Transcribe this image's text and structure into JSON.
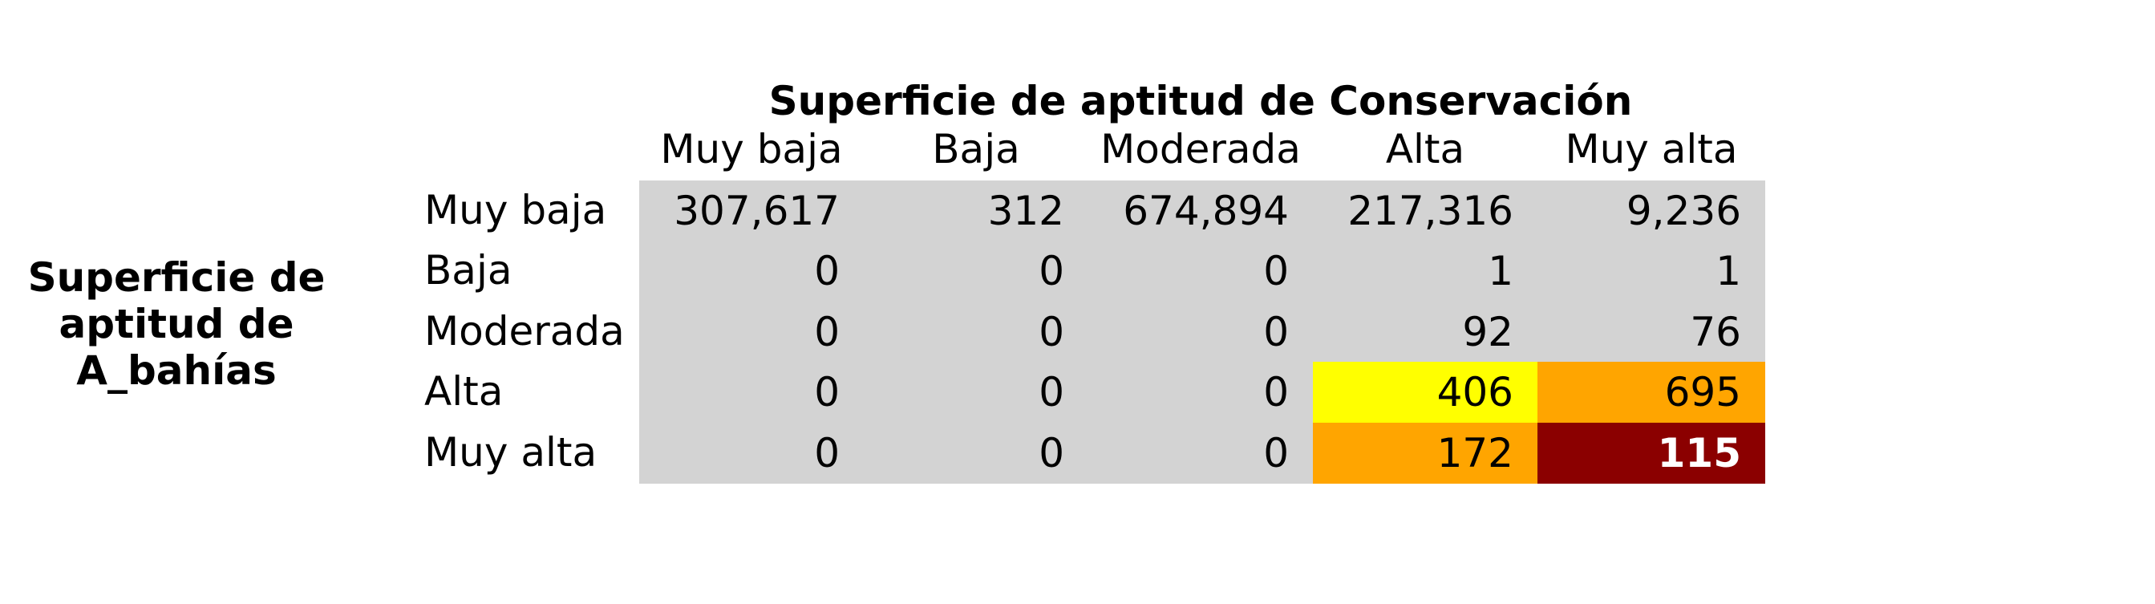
{
  "chart_data": {
    "type": "table",
    "title": "Superficie de aptitud de Conservación",
    "row_axis_label": "Superficie de aptitud de A_bahías",
    "columns": [
      "Muy baja",
      "Baja",
      "Moderada",
      "Alta",
      "Muy alta"
    ],
    "rows": [
      "Muy baja",
      "Baja",
      "Moderada",
      "Alta",
      "Muy alta"
    ],
    "values": [
      [
        "307,617",
        "312",
        "674,894",
        "217,316",
        "9,236"
      ],
      [
        "0",
        "0",
        "0",
        "1",
        "1"
      ],
      [
        "0",
        "0",
        "0",
        "92",
        "76"
      ],
      [
        "0",
        "0",
        "0",
        "406",
        "695"
      ],
      [
        "0",
        "0",
        "0",
        "172",
        "115"
      ]
    ],
    "cell_colors": [
      [
        "#d3d3d3",
        "#d3d3d3",
        "#d3d3d3",
        "#d3d3d3",
        "#d3d3d3"
      ],
      [
        "#d3d3d3",
        "#d3d3d3",
        "#d3d3d3",
        "#d3d3d3",
        "#d3d3d3"
      ],
      [
        "#d3d3d3",
        "#d3d3d3",
        "#d3d3d3",
        "#d3d3d3",
        "#d3d3d3"
      ],
      [
        "#d3d3d3",
        "#d3d3d3",
        "#d3d3d3",
        "#ffff00",
        "#ffa500"
      ],
      [
        "#d3d3d3",
        "#d3d3d3",
        "#d3d3d3",
        "#ffa500",
        "#8b0000"
      ]
    ],
    "highlight_text_color": "#ffffff"
  }
}
